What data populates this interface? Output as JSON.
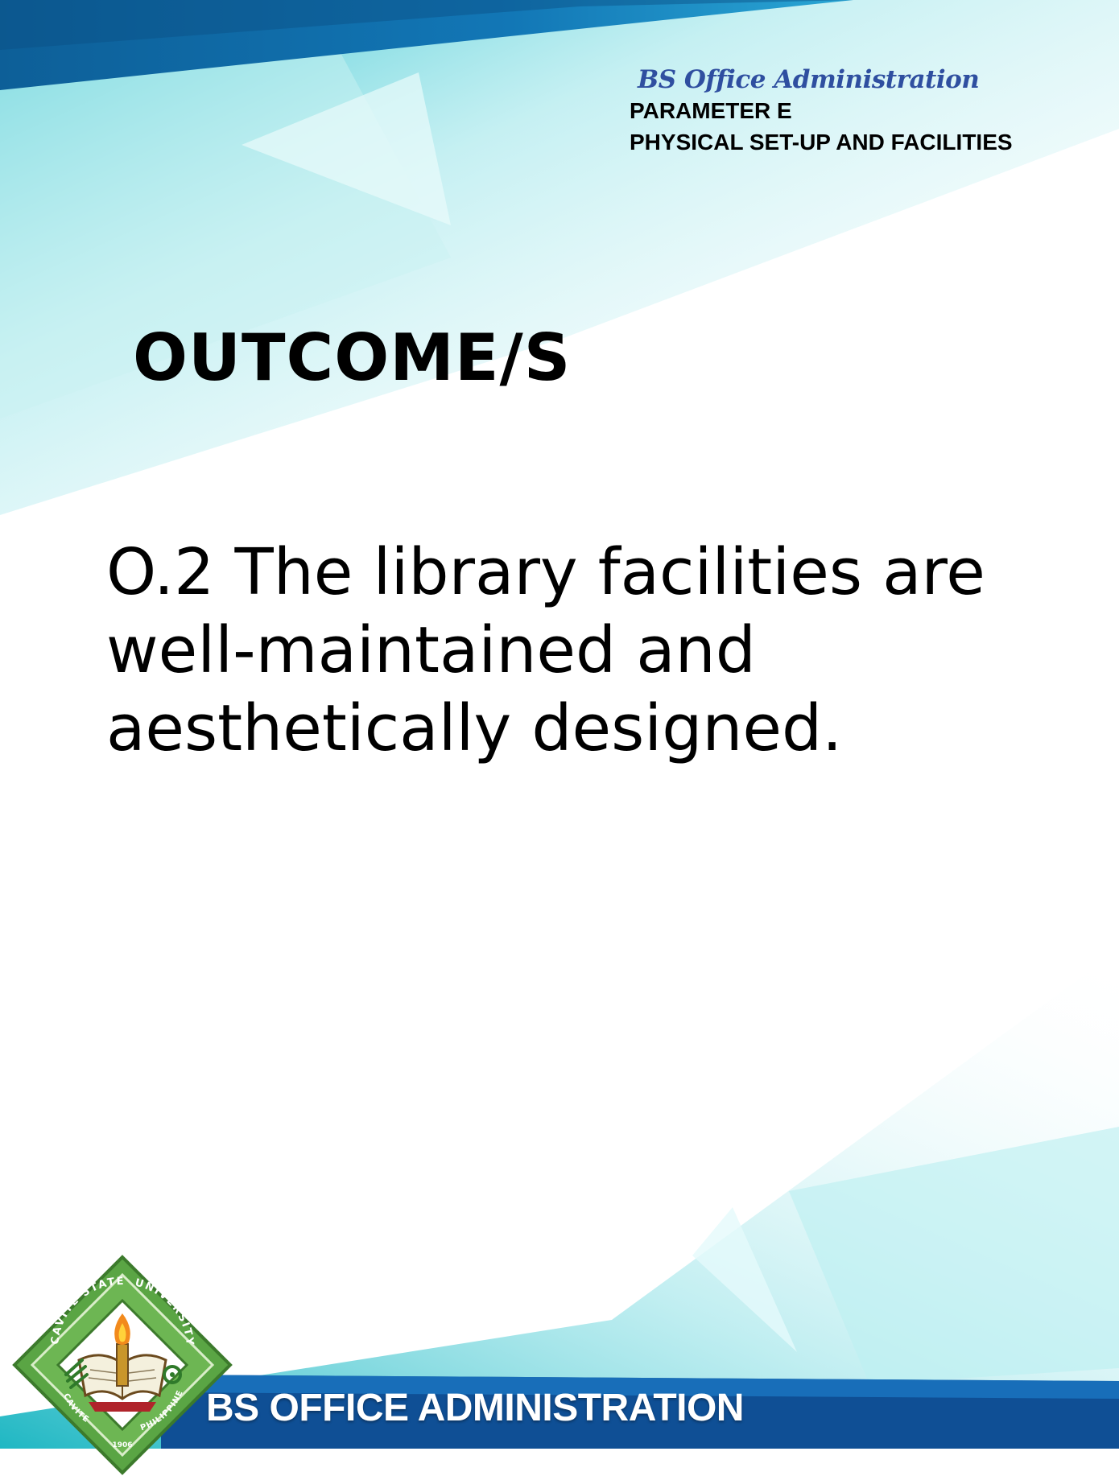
{
  "header": {
    "program": "BS Office Administration",
    "parameter": "PARAMETER E",
    "area": "PHYSICAL SET-UP AND FACILITIES"
  },
  "section_heading": "OUTCOME/S",
  "outcome": {
    "lines": [
      "O.2 The library facilities are",
      "well-maintained and",
      "aesthetically designed."
    ]
  },
  "footer": {
    "banner": "BS OFFICE ADMINISTRATION"
  },
  "logo": {
    "top_text": "UNIVERSITY",
    "left_text": "CAVITE STATE",
    "bottom_left_text": "CAVITE",
    "bottom_right_text": "PHILIPPINES",
    "year": "1906"
  },
  "colors": {
    "header_blue": "#0f6eaf",
    "accent_cyan": "#3cc6d0",
    "teal": "#1aa9b6",
    "program_title": "#2f4fa0",
    "logo_green": "#4f9a3f"
  }
}
